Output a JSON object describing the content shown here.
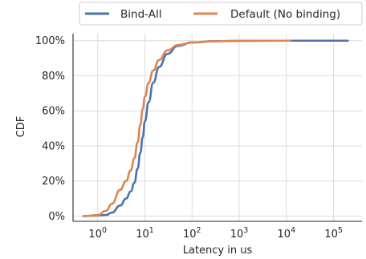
{
  "chart_data": {
    "type": "line",
    "title": "",
    "xlabel": "Latency in us",
    "ylabel": "CDF",
    "x_scale": "log",
    "xlim": [
      0.3,
      400000
    ],
    "ylim": [
      -0.03,
      1.04
    ],
    "x_ticks": [
      {
        "value": 1,
        "base": "10",
        "exp": "0"
      },
      {
        "value": 10,
        "base": "10",
        "exp": "1"
      },
      {
        "value": 100,
        "base": "10",
        "exp": "2"
      },
      {
        "value": 1000,
        "base": "10",
        "exp": "3"
      },
      {
        "value": 10000,
        "base": "10",
        "exp": "4"
      },
      {
        "value": 100000,
        "base": "10",
        "exp": "5"
      }
    ],
    "y_ticks": [
      {
        "value": 0,
        "label": "0%"
      },
      {
        "value": 0.2,
        "label": "20%"
      },
      {
        "value": 0.4,
        "label": "40%"
      },
      {
        "value": 0.6,
        "label": "60%"
      },
      {
        "value": 0.8,
        "label": "80%"
      },
      {
        "value": 1.0,
        "label": "100%"
      }
    ],
    "grid": true,
    "legend_position": "top-center",
    "series": [
      {
        "name": "Bind-All",
        "color": "#4c72b0",
        "points": [
          [
            0.5,
            0.0
          ],
          [
            1,
            0.003
          ],
          [
            1.5,
            0.006
          ],
          [
            2,
            0.02
          ],
          [
            3,
            0.06
          ],
          [
            4,
            0.1
          ],
          [
            5,
            0.14
          ],
          [
            6,
            0.19
          ],
          [
            7,
            0.27
          ],
          [
            8,
            0.36
          ],
          [
            9,
            0.45
          ],
          [
            10,
            0.54
          ],
          [
            12,
            0.65
          ],
          [
            15,
            0.76
          ],
          [
            20,
            0.85
          ],
          [
            30,
            0.925
          ],
          [
            50,
            0.97
          ],
          [
            100,
            0.99
          ],
          [
            300,
            0.997
          ],
          [
            1000,
            0.999
          ],
          [
            10000,
            1.0
          ],
          [
            200000,
            1.0
          ]
        ]
      },
      {
        "name": "Default (No binding)",
        "color": "#dd8452",
        "points": [
          [
            0.5,
            0.0
          ],
          [
            1,
            0.005
          ],
          [
            1.5,
            0.03
          ],
          [
            2,
            0.07
          ],
          [
            3,
            0.15
          ],
          [
            4,
            0.2
          ],
          [
            5,
            0.26
          ],
          [
            6,
            0.33
          ],
          [
            7,
            0.42
          ],
          [
            8,
            0.52
          ],
          [
            9,
            0.61
          ],
          [
            10,
            0.68
          ],
          [
            12,
            0.76
          ],
          [
            15,
            0.83
          ],
          [
            20,
            0.89
          ],
          [
            30,
            0.945
          ],
          [
            50,
            0.975
          ],
          [
            100,
            0.99
          ],
          [
            300,
            0.997
          ],
          [
            1000,
            0.999
          ],
          [
            5000,
            1.0
          ],
          [
            12000,
            1.0
          ]
        ]
      }
    ]
  }
}
